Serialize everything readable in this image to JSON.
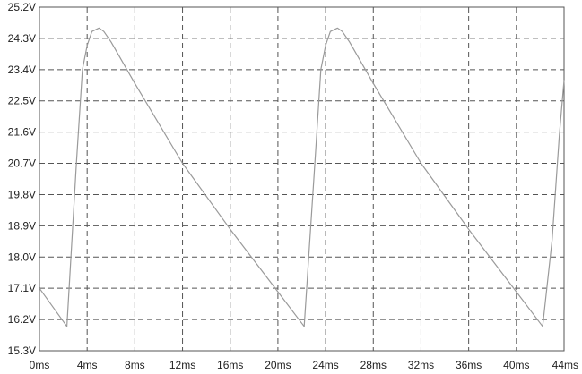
{
  "chart_data": {
    "type": "line",
    "title": "",
    "xlabel": "",
    "ylabel": "",
    "xlim": [
      0,
      44
    ],
    "ylim": [
      15.3,
      25.2
    ],
    "grid": true,
    "x_unit": "ms",
    "y_unit": "V",
    "x_ticks": [
      "0ms",
      "4ms",
      "8ms",
      "12ms",
      "16ms",
      "20ms",
      "24ms",
      "28ms",
      "32ms",
      "36ms",
      "40ms",
      "44ms"
    ],
    "y_ticks": [
      "25.2V",
      "24.3V",
      "23.4V",
      "22.5V",
      "21.6V",
      "20.7V",
      "19.8V",
      "18.9V",
      "18.0V",
      "17.1V",
      "16.2V",
      "15.3V"
    ],
    "colors": {
      "trace": "#9a9a9a",
      "grid": "#555555"
    },
    "series": [
      {
        "x": [
          0,
          2.3,
          3.1,
          3.6,
          4.0,
          4.4,
          5.0,
          5.4,
          6.0,
          8.0,
          12.0,
          16.0,
          20.0,
          22.2,
          23.1,
          23.6,
          24.0,
          24.4,
          25.0,
          25.4,
          26.0,
          28.0,
          32.0,
          36.0,
          40.0,
          42.2,
          43.0,
          43.6,
          44.0
        ],
        "y": [
          17.1,
          16.0,
          20.7,
          23.4,
          24.1,
          24.5,
          24.6,
          24.5,
          24.2,
          23.0,
          20.7,
          18.8,
          17.0,
          16.0,
          20.7,
          23.4,
          24.1,
          24.5,
          24.6,
          24.5,
          24.2,
          23.0,
          20.7,
          18.8,
          17.0,
          16.0,
          18.5,
          21.5,
          23.1
        ]
      }
    ]
  }
}
